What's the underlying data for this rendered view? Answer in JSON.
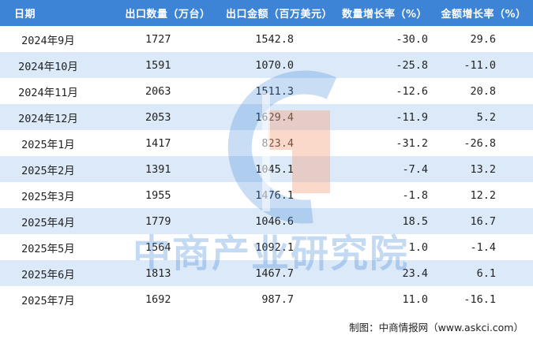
{
  "table": {
    "headers": [
      "日期",
      "出口数量（万台）",
      "出口金额（百万美元）",
      "数量增长率（%）",
      "金额增长率（%）"
    ],
    "rows": [
      {
        "date": "2024年9月",
        "qty": "1727",
        "amount": "1542.8",
        "qty_growth": "-30.0",
        "amount_growth": "29.6"
      },
      {
        "date": "2024年10月",
        "qty": "1591",
        "amount": "1070.0",
        "qty_growth": "-25.8",
        "amount_growth": "-11.0"
      },
      {
        "date": "2024年11月",
        "qty": "2063",
        "amount": "1511.3",
        "qty_growth": "-12.6",
        "amount_growth": "20.8"
      },
      {
        "date": "2024年12月",
        "qty": "2053",
        "amount": "1629.4",
        "qty_growth": "-11.9",
        "amount_growth": "5.2"
      },
      {
        "date": "2025年1月",
        "qty": "1417",
        "amount": "823.4",
        "qty_growth": "-31.2",
        "amount_growth": "-26.8"
      },
      {
        "date": "2025年2月",
        "qty": "1391",
        "amount": "1045.1",
        "qty_growth": "-7.4",
        "amount_growth": "13.2"
      },
      {
        "date": "2025年3月",
        "qty": "1955",
        "amount": "1476.1",
        "qty_growth": "-1.8",
        "amount_growth": "12.2"
      },
      {
        "date": "2025年4月",
        "qty": "1779",
        "amount": "1046.6",
        "qty_growth": "18.5",
        "amount_growth": "16.7"
      },
      {
        "date": "2025年5月",
        "qty": "1564",
        "amount": "1092.1",
        "qty_growth": "1.0",
        "amount_growth": "-1.4"
      },
      {
        "date": "2025年6月",
        "qty": "1813",
        "amount": "1467.7",
        "qty_growth": "23.4",
        "amount_growth": "6.1"
      },
      {
        "date": "2025年7月",
        "qty": "1692",
        "amount": "987.7",
        "qty_growth": "11.0",
        "amount_growth": "-16.1"
      }
    ]
  },
  "watermark": {
    "text": "中商产业研究院"
  },
  "source": "制图：中商情报网（www.askci.com）",
  "colors": {
    "header_bg": "#3d84d6",
    "stripe": "#dce9f8",
    "logo_blue": "#3d84d6",
    "logo_orange": "#f2a07a"
  }
}
